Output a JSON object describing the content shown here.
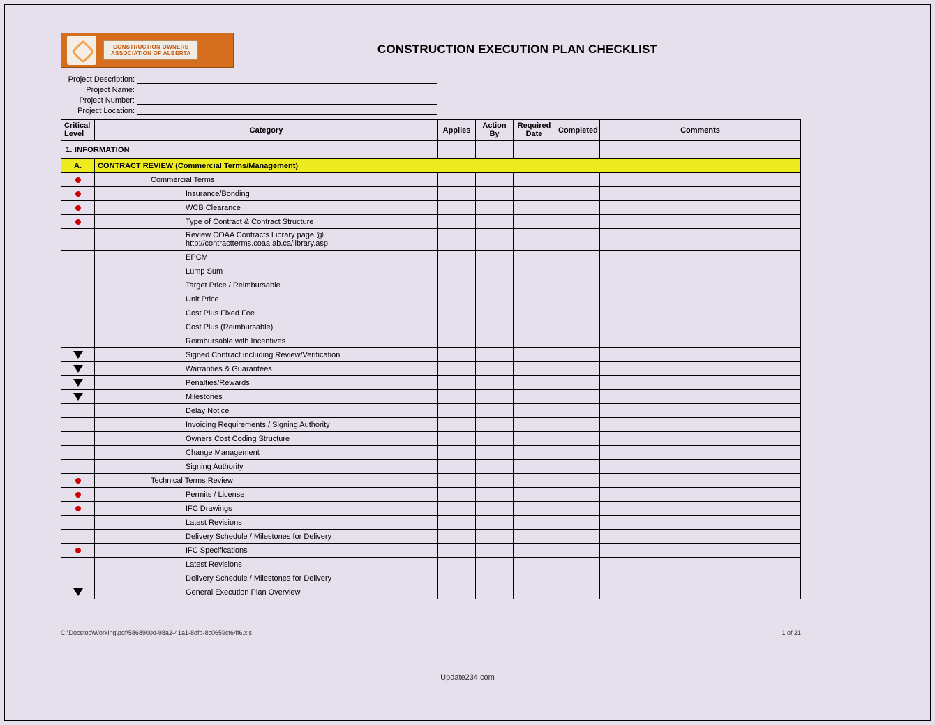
{
  "logo": {
    "line1": "CONSTRUCTION OWNERS",
    "line2": "ASSOCIATION OF ALBERTA"
  },
  "title": "CONSTRUCTION EXECUTION PLAN CHECKLIST",
  "meta": {
    "desc_label": "Project Description:",
    "name_label": "Project Name:",
    "number_label": "Project Number:",
    "location_label": "Project Location:"
  },
  "columns": {
    "critical": "Critical Level",
    "category": "Category",
    "applies": "Applies",
    "action_by": "Action By",
    "required_date": "Required Date",
    "completed": "Completed",
    "comments": "Comments"
  },
  "section": {
    "num_title": "1. INFORMATION",
    "sub_letter": "A.",
    "sub_title": "CONTRACT REVIEW (Commercial Terms/Management)"
  },
  "rows": [
    {
      "crit": "dot",
      "indent": 1,
      "label": "Commercial Terms"
    },
    {
      "crit": "dot",
      "indent": 2,
      "label": "Insurance/Bonding"
    },
    {
      "crit": "dot",
      "indent": 2,
      "label": "WCB Clearance"
    },
    {
      "crit": "dot",
      "indent": 2,
      "label": "Type of Contract & Contract Structure"
    },
    {
      "crit": "",
      "indent": 2,
      "label": "Review COAA Contracts Library page @ http://contractterms.coaa.ab.ca/library.asp"
    },
    {
      "crit": "",
      "indent": 2,
      "label": "EPCM"
    },
    {
      "crit": "",
      "indent": 2,
      "label": "Lump Sum"
    },
    {
      "crit": "",
      "indent": 2,
      "label": "Target Price / Reimbursable"
    },
    {
      "crit": "",
      "indent": 2,
      "label": "Unit Price"
    },
    {
      "crit": "",
      "indent": 2,
      "label": "Cost Plus Fixed Fee"
    },
    {
      "crit": "",
      "indent": 2,
      "label": "Cost Plus (Reimbursable)"
    },
    {
      "crit": "",
      "indent": 2,
      "label": "Reimbursable with Incentives"
    },
    {
      "crit": "tri",
      "indent": 2,
      "label": "Signed Contract including Review/Verification"
    },
    {
      "crit": "tri",
      "indent": 2,
      "label": "Warranties & Guarantees"
    },
    {
      "crit": "tri",
      "indent": 2,
      "label": "Penalties/Rewards"
    },
    {
      "crit": "tri",
      "indent": 2,
      "label": "Milestones"
    },
    {
      "crit": "",
      "indent": 2,
      "label": "Delay Notice"
    },
    {
      "crit": "",
      "indent": 2,
      "label": "Invoicing Requirements / Signing Authority"
    },
    {
      "crit": "",
      "indent": 2,
      "label": "Owners Cost Coding Structure"
    },
    {
      "crit": "",
      "indent": 2,
      "label": "Change Management"
    },
    {
      "crit": "",
      "indent": 2,
      "label": "Signing Authority"
    },
    {
      "crit": "dot",
      "indent": 1,
      "label": "Technical Terms Review"
    },
    {
      "crit": "dot",
      "indent": 2,
      "label": "Permits / License"
    },
    {
      "crit": "dot",
      "indent": 2,
      "label": "IFC Drawings"
    },
    {
      "crit": "",
      "indent": 2,
      "label": "Latest Revisions"
    },
    {
      "crit": "",
      "indent": 2,
      "label": "Delivery Schedule / Milestones for Delivery"
    },
    {
      "crit": "dot",
      "indent": 2,
      "label": "IFC Specifications"
    },
    {
      "crit": "",
      "indent": 2,
      "label": "Latest Revisions"
    },
    {
      "crit": "",
      "indent": 2,
      "label": "Delivery Schedule / Milestones for Delivery"
    },
    {
      "crit": "tri",
      "indent": 2,
      "label": "General Execution Plan Overview"
    }
  ],
  "footer": {
    "path": "C:\\Docstoc\\Working\\pdf\\5868900d-98a2-41a1-8dfb-8c0659cf64f6.xls",
    "page": "1 of 21"
  },
  "watermark": "Update234.com",
  "colors": {
    "page_bg": "#e6e0ed",
    "logo_bg": "#d56f1f",
    "highlight": "#edea1f",
    "dot": "#cc0000"
  }
}
